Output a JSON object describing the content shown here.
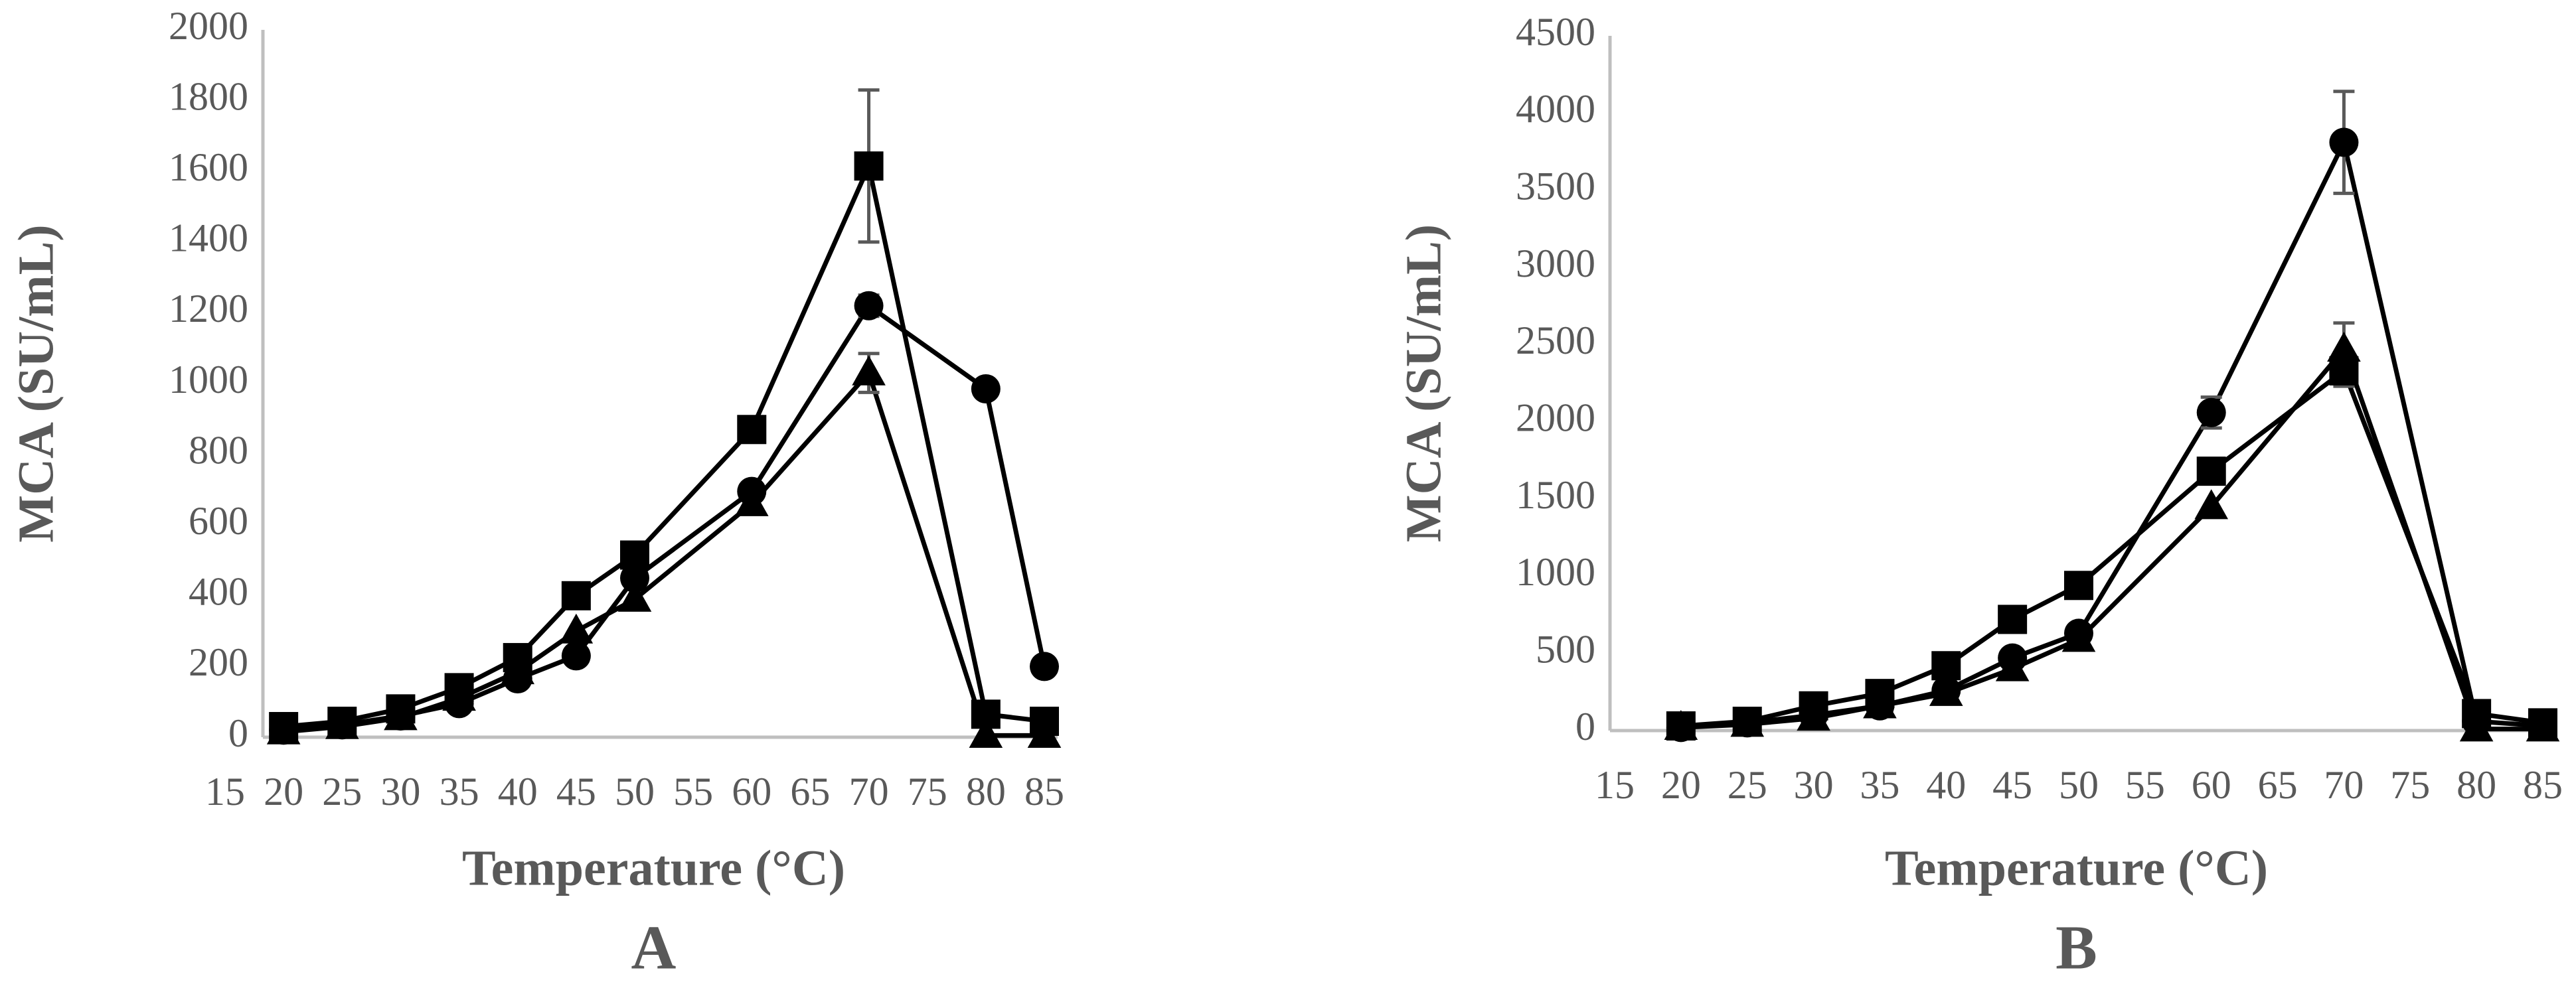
{
  "chart_data": [
    {
      "type": "line",
      "label": "A",
      "xlabel": "Temperature (°C)",
      "ylabel": "MCA (SU/mL)",
      "x": [
        20,
        25,
        30,
        35,
        40,
        45,
        50,
        60,
        70,
        80,
        85
      ],
      "xlim": [
        15,
        85
      ],
      "xticks": [
        15,
        20,
        25,
        30,
        35,
        40,
        45,
        50,
        55,
        60,
        65,
        70,
        75,
        80,
        85
      ],
      "ylim": [
        0,
        2000
      ],
      "yticks": [
        0,
        200,
        400,
        600,
        800,
        1000,
        1200,
        1400,
        1600,
        1800,
        2000
      ],
      "grid": false,
      "series": [
        {
          "marker": "square",
          "color": "#000000",
          "values": [
            30,
            45,
            80,
            140,
            225,
            400,
            515,
            870,
            1615,
            65,
            45
          ],
          "errors": [
            null,
            null,
            null,
            null,
            null,
            null,
            null,
            null,
            215,
            null,
            null
          ]
        },
        {
          "marker": "circle",
          "color": "#000000",
          "values": [
            20,
            35,
            60,
            95,
            165,
            230,
            450,
            695,
            1220,
            985,
            200
          ],
          "errors": [
            null,
            null,
            null,
            null,
            null,
            null,
            null,
            null,
            30,
            null,
            null
          ]
        },
        {
          "marker": "triangle",
          "color": "#000000",
          "values": [
            15,
            30,
            55,
            110,
            185,
            300,
            390,
            660,
            1030,
            5,
            5
          ],
          "errors": [
            null,
            null,
            null,
            null,
            null,
            null,
            null,
            null,
            55,
            null,
            null
          ]
        }
      ]
    },
    {
      "type": "line",
      "label": "B",
      "xlabel": "Temperature (°C)",
      "ylabel": "MCA (SU/mL)",
      "x": [
        20,
        25,
        30,
        35,
        40,
        45,
        50,
        60,
        70,
        80,
        85
      ],
      "xlim": [
        15,
        85
      ],
      "xticks": [
        15,
        20,
        25,
        30,
        35,
        40,
        45,
        50,
        55,
        60,
        65,
        70,
        75,
        80,
        85
      ],
      "ylim": [
        0,
        4500
      ],
      "yticks": [
        0,
        500,
        1000,
        1500,
        2000,
        2500,
        3000,
        3500,
        4000,
        4500
      ],
      "grid": false,
      "series": [
        {
          "marker": "circle",
          "color": "#000000",
          "values": [
            20,
            50,
            100,
            160,
            260,
            470,
            630,
            2060,
            3810,
            60,
            30
          ],
          "errors": [
            null,
            null,
            null,
            null,
            null,
            null,
            null,
            100,
            330,
            null,
            null
          ]
        },
        {
          "marker": "square",
          "color": "#000000",
          "values": [
            30,
            60,
            160,
            240,
            420,
            720,
            940,
            1680,
            2330,
            110,
            50
          ],
          "errors": [
            null,
            null,
            null,
            null,
            null,
            null,
            null,
            null,
            100,
            null,
            null
          ]
        },
        {
          "marker": "triangle",
          "color": "#000000",
          "values": [
            20,
            40,
            80,
            160,
            240,
            400,
            590,
            1450,
            2470,
            10,
            10
          ],
          "errors": [
            null,
            null,
            null,
            null,
            null,
            null,
            null,
            null,
            170,
            null,
            null
          ]
        }
      ]
    }
  ]
}
